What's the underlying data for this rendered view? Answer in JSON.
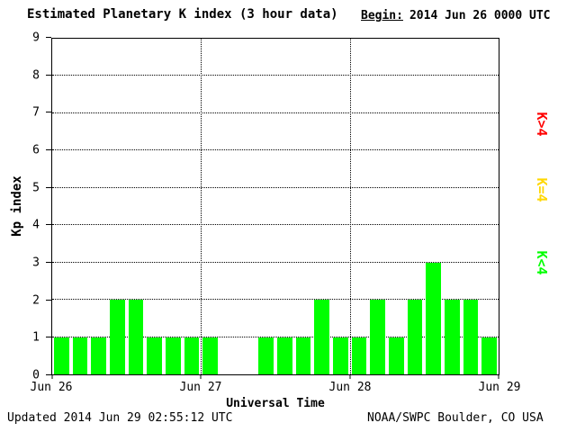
{
  "title": "Estimated Planetary K index (3 hour data)",
  "begin": {
    "label": "Begin:",
    "value": "2014 Jun 26 0000 UTC"
  },
  "footer": {
    "updated": "Updated 2014 Jun 29 02:55:12 UTC",
    "source": "NOAA/SWPC Boulder, CO USA"
  },
  "colors": {
    "bar_green": "#00ff00",
    "legend_red": "#ff0000",
    "legend_yellow": "#ffd700",
    "legend_green": "#00ff00",
    "grid": "#000000",
    "background": "#ffffff"
  },
  "legend": [
    {
      "label": "K>4",
      "color": "#ff0000"
    },
    {
      "label": "K=4",
      "color": "#ffd700"
    },
    {
      "label": "K<4",
      "color": "#00ff00"
    }
  ],
  "chart_data": {
    "type": "bar",
    "title": "Estimated Planetary K index (3 hour data)",
    "xlabel": "Universal Time",
    "ylabel": "Kp index",
    "ylim": [
      0,
      9
    ],
    "yticks": [
      0,
      1,
      2,
      3,
      4,
      5,
      6,
      7,
      8,
      9
    ],
    "xticks": [
      "Jun 26",
      "Jun 27",
      "Jun 28",
      "Jun 29"
    ],
    "begin": "2014 Jun 26 0000 UTC",
    "interval_hours": 3,
    "slots": 24,
    "values": [
      1,
      1,
      1,
      2,
      2,
      1,
      1,
      1,
      1,
      null,
      null,
      1,
      1,
      1,
      2,
      1,
      1,
      2,
      1,
      2,
      3,
      2,
      2,
      1
    ],
    "bar_color": "#00ff00",
    "grid": "dotted horizontal lines at each integer Kp, dotted vertical lines at day boundaries",
    "legend_position": "right"
  }
}
